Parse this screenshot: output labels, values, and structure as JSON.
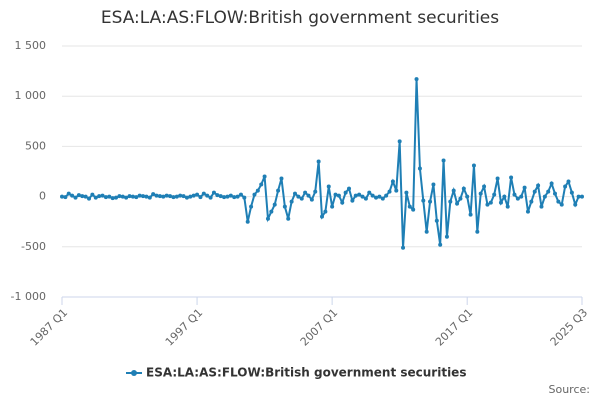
{
  "chart_data": {
    "type": "line",
    "title": "ESA:LA:AS:FLOW:British government securities",
    "source": "Source:",
    "categories": [
      "1987 Q1",
      null,
      null,
      null,
      null,
      null,
      null,
      null,
      null,
      null,
      null,
      null,
      null,
      null,
      null,
      null,
      null,
      null,
      null,
      null,
      null,
      null,
      null,
      null,
      null,
      null,
      null,
      null,
      null,
      null,
      null,
      null,
      null,
      null,
      null,
      null,
      null,
      null,
      null,
      null,
      "1997 Q1",
      null,
      null,
      null,
      null,
      null,
      null,
      null,
      null,
      null,
      null,
      null,
      null,
      null,
      null,
      null,
      null,
      null,
      null,
      null,
      null,
      null,
      null,
      null,
      null,
      null,
      null,
      null,
      null,
      null,
      null,
      null,
      null,
      null,
      null,
      null,
      null,
      null,
      null,
      null,
      "2007 Q1",
      null,
      null,
      null,
      null,
      null,
      null,
      null,
      null,
      null,
      null,
      null,
      null,
      null,
      null,
      null,
      null,
      null,
      null,
      null,
      null,
      null,
      null,
      null,
      null,
      null,
      null,
      null,
      null,
      null,
      null,
      null,
      null,
      null,
      null,
      null,
      null,
      null,
      null,
      null,
      "2017 Q1",
      null,
      null,
      null,
      null,
      null,
      null,
      null,
      null,
      null,
      null,
      null,
      null,
      null,
      null,
      null,
      null,
      null,
      null,
      null,
      null,
      null,
      null,
      null,
      null,
      null,
      null,
      null,
      null,
      null,
      null,
      null,
      null,
      null,
      "2025 Q3"
    ],
    "series": [
      {
        "name": "ESA:LA:AS:FLOW:British government securities",
        "color": "#1f7fb5",
        "values": [
          0,
          -5,
          30,
          10,
          -10,
          15,
          5,
          0,
          -20,
          20,
          -10,
          5,
          10,
          -5,
          0,
          -15,
          -10,
          5,
          0,
          -10,
          5,
          0,
          -5,
          10,
          5,
          0,
          -10,
          25,
          10,
          5,
          0,
          10,
          5,
          -5,
          0,
          10,
          5,
          -10,
          0,
          10,
          20,
          -5,
          30,
          10,
          -10,
          40,
          15,
          5,
          -5,
          0,
          10,
          -5,
          0,
          20,
          -10,
          -250,
          -100,
          20,
          60,
          120,
          200,
          -220,
          -150,
          -80,
          60,
          180,
          -100,
          -220,
          -50,
          30,
          0,
          -20,
          40,
          10,
          -30,
          50,
          350,
          -200,
          -150,
          100,
          -100,
          20,
          10,
          -60,
          40,
          80,
          -40,
          10,
          20,
          0,
          -20,
          40,
          10,
          -10,
          0,
          -20,
          10,
          50,
          150,
          60,
          550,
          -510,
          40,
          -100,
          -130,
          1170,
          280,
          -40,
          -350,
          -50,
          120,
          -240,
          -480,
          360,
          -400,
          -50,
          60,
          -70,
          -20,
          80,
          0,
          -180,
          310,
          -350,
          30,
          100,
          -80,
          -60,
          20,
          180,
          -60,
          0,
          -100,
          190,
          20,
          -20,
          0,
          90,
          -150,
          -50,
          50,
          110,
          -100,
          0,
          50,
          130,
          30,
          -50,
          -80,
          100,
          150,
          40,
          -80,
          0,
          0
        ]
      }
    ],
    "ylim": [
      -1000,
      1500
    ],
    "yticks": [
      {
        "value": -1000,
        "label": "-1 000"
      },
      -500,
      0,
      500,
      {
        "value": 1000,
        "label": "1 000"
      },
      {
        "value": 1500,
        "label": "1 500"
      }
    ],
    "grid": true,
    "legend": "bottom"
  }
}
